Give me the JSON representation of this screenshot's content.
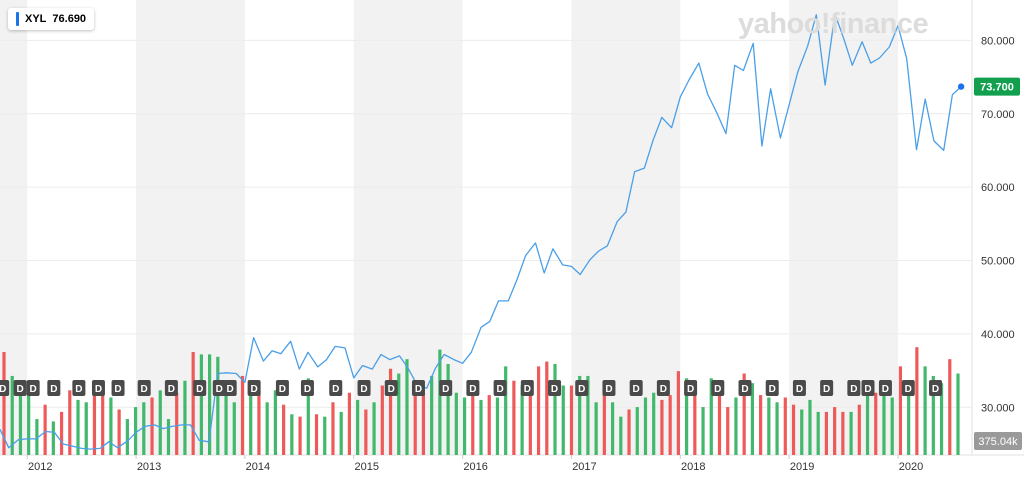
{
  "ticker": {
    "symbol": "XYL",
    "value": "76.690"
  },
  "watermark": "yahoo!finance",
  "last_price_label": "73.700",
  "volume_label": "375.04k",
  "colors": {
    "line": "#4a9fe8",
    "last_badge": "#12a04f",
    "vol_up": "#41b86b",
    "vol_down": "#ee5a5a",
    "band": "#f2f2f2",
    "div_badge": "#4a4a4a"
  },
  "chart_data": {
    "type": "line",
    "title": "",
    "xlabel": "",
    "ylabel": "",
    "ylim": [
      23.5,
      85.5
    ],
    "y_ticks": [
      30,
      40,
      50,
      60,
      70,
      80
    ],
    "y_tick_labels": [
      "30.000",
      "40.000",
      "50.000",
      "60.000",
      "70.000",
      "80.000"
    ],
    "x_ticks": [
      2012,
      2013,
      2014,
      2015,
      2016,
      2017,
      2018,
      2019,
      2020
    ],
    "x_tick_labels": [
      "2012",
      "2013",
      "2014",
      "2015",
      "2016",
      "2017",
      "2018",
      "2019",
      "2020"
    ],
    "xlim": [
      2011.75,
      2020.68
    ],
    "grid": true,
    "series": [
      {
        "points": [
          [
            2011.75,
            27.0
          ],
          [
            2011.83,
            24.5
          ],
          [
            2011.92,
            25.6
          ],
          [
            2012.0,
            25.7
          ],
          [
            2012.08,
            25.7
          ],
          [
            2012.17,
            26.7
          ],
          [
            2012.25,
            26.6
          ],
          [
            2012.33,
            25.0
          ],
          [
            2012.42,
            24.7
          ],
          [
            2012.5,
            24.4
          ],
          [
            2012.58,
            24.3
          ],
          [
            2012.67,
            24.4
          ],
          [
            2012.75,
            25.3
          ],
          [
            2012.83,
            24.5
          ],
          [
            2012.92,
            25.4
          ],
          [
            2013.0,
            26.6
          ],
          [
            2013.08,
            27.4
          ],
          [
            2013.17,
            27.6
          ],
          [
            2013.25,
            27.1
          ],
          [
            2013.33,
            27.4
          ],
          [
            2013.42,
            27.6
          ],
          [
            2013.5,
            27.6
          ],
          [
            2013.58,
            25.5
          ],
          [
            2013.67,
            25.3
          ],
          [
            2013.75,
            34.6
          ],
          [
            2013.83,
            34.7
          ],
          [
            2013.92,
            34.6
          ],
          [
            2014.0,
            33.4
          ],
          [
            2014.08,
            39.5
          ],
          [
            2014.17,
            36.3
          ],
          [
            2014.25,
            37.7
          ],
          [
            2014.33,
            37.3
          ],
          [
            2014.42,
            39.0
          ],
          [
            2014.5,
            35.2
          ],
          [
            2014.58,
            37.5
          ],
          [
            2014.67,
            35.5
          ],
          [
            2014.75,
            36.5
          ],
          [
            2014.83,
            38.3
          ],
          [
            2014.92,
            38.1
          ],
          [
            2015.0,
            34.0
          ],
          [
            2015.08,
            35.7
          ],
          [
            2015.17,
            35.2
          ],
          [
            2015.25,
            37.2
          ],
          [
            2015.33,
            36.5
          ],
          [
            2015.42,
            37.0
          ],
          [
            2015.5,
            35.3
          ],
          [
            2015.58,
            33.1
          ],
          [
            2015.67,
            32.6
          ],
          [
            2015.75,
            35.3
          ],
          [
            2015.83,
            37.2
          ],
          [
            2015.92,
            36.5
          ],
          [
            2016.0,
            36.0
          ],
          [
            2016.08,
            37.5
          ],
          [
            2016.17,
            40.9
          ],
          [
            2016.25,
            41.7
          ],
          [
            2016.33,
            44.5
          ],
          [
            2016.42,
            44.5
          ],
          [
            2016.5,
            47.4
          ],
          [
            2016.58,
            50.7
          ],
          [
            2016.67,
            52.4
          ],
          [
            2016.75,
            48.3
          ],
          [
            2016.83,
            51.6
          ],
          [
            2016.92,
            49.4
          ],
          [
            2017.0,
            49.2
          ],
          [
            2017.08,
            48.1
          ],
          [
            2017.17,
            50.1
          ],
          [
            2017.25,
            51.3
          ],
          [
            2017.33,
            52.0
          ],
          [
            2017.42,
            55.3
          ],
          [
            2017.5,
            56.6
          ],
          [
            2017.58,
            62.1
          ],
          [
            2017.67,
            62.6
          ],
          [
            2017.75,
            66.4
          ],
          [
            2017.83,
            69.5
          ],
          [
            2017.92,
            68.1
          ],
          [
            2018.0,
            72.3
          ],
          [
            2018.08,
            74.6
          ],
          [
            2018.17,
            76.9
          ],
          [
            2018.25,
            72.7
          ],
          [
            2018.33,
            70.3
          ],
          [
            2018.42,
            67.3
          ],
          [
            2018.5,
            76.6
          ],
          [
            2018.58,
            75.9
          ],
          [
            2018.67,
            79.6
          ],
          [
            2018.75,
            65.6
          ],
          [
            2018.83,
            73.4
          ],
          [
            2018.92,
            66.7
          ],
          [
            2019.0,
            71.2
          ],
          [
            2019.08,
            75.7
          ],
          [
            2019.17,
            79.2
          ],
          [
            2019.25,
            83.5
          ],
          [
            2019.33,
            73.9
          ],
          [
            2019.42,
            83.6
          ],
          [
            2019.5,
            80.3
          ],
          [
            2019.58,
            76.6
          ],
          [
            2019.67,
            79.8
          ],
          [
            2019.75,
            76.9
          ],
          [
            2019.83,
            77.6
          ],
          [
            2019.92,
            79.1
          ],
          [
            2020.0,
            82.0
          ],
          [
            2020.08,
            77.5
          ],
          [
            2020.17,
            65.1
          ],
          [
            2020.25,
            72.0
          ],
          [
            2020.33,
            66.3
          ],
          [
            2020.42,
            65.0
          ],
          [
            2020.5,
            72.6
          ],
          [
            2020.58,
            73.7
          ]
        ]
      }
    ],
    "volume": {
      "label_unit": "k",
      "bars": [
        {
          "h": 86,
          "up": false
        },
        {
          "h": 66,
          "up": true
        },
        {
          "h": 50,
          "up": true
        },
        {
          "h": 55,
          "up": true
        },
        {
          "h": 30,
          "up": true
        },
        {
          "h": 42,
          "up": false
        },
        {
          "h": 28,
          "up": true
        },
        {
          "h": 36,
          "up": false
        },
        {
          "h": 54,
          "up": false
        },
        {
          "h": 46,
          "up": true
        },
        {
          "h": 44,
          "up": true
        },
        {
          "h": 60,
          "up": false
        },
        {
          "h": 62,
          "up": false
        },
        {
          "h": 48,
          "up": true
        },
        {
          "h": 38,
          "up": false
        },
        {
          "h": 30,
          "up": true
        },
        {
          "h": 40,
          "up": true
        },
        {
          "h": 44,
          "up": true
        },
        {
          "h": 48,
          "up": false
        },
        {
          "h": 54,
          "up": true
        },
        {
          "h": 30,
          "up": true
        },
        {
          "h": 52,
          "up": false
        },
        {
          "h": 62,
          "up": true
        },
        {
          "h": 86,
          "up": false
        },
        {
          "h": 84,
          "up": true
        },
        {
          "h": 84,
          "up": true
        },
        {
          "h": 82,
          "up": true
        },
        {
          "h": 56,
          "up": true
        },
        {
          "h": 44,
          "up": true
        },
        {
          "h": 66,
          "up": false
        },
        {
          "h": 54,
          "up": true
        },
        {
          "h": 60,
          "up": false
        },
        {
          "h": 44,
          "up": true
        },
        {
          "h": 54,
          "up": true
        },
        {
          "h": 42,
          "up": false
        },
        {
          "h": 34,
          "up": true
        },
        {
          "h": 32,
          "up": false
        },
        {
          "h": 64,
          "up": true
        },
        {
          "h": 34,
          "up": false
        },
        {
          "h": 32,
          "up": true
        },
        {
          "h": 44,
          "up": false
        },
        {
          "h": 36,
          "up": true
        },
        {
          "h": 52,
          "up": false
        },
        {
          "h": 46,
          "up": true
        },
        {
          "h": 38,
          "up": false
        },
        {
          "h": 44,
          "up": true
        },
        {
          "h": 58,
          "up": false
        },
        {
          "h": 72,
          "up": false
        },
        {
          "h": 68,
          "up": true
        },
        {
          "h": 80,
          "up": true
        },
        {
          "h": 54,
          "up": false
        },
        {
          "h": 52,
          "up": false
        },
        {
          "h": 66,
          "up": true
        },
        {
          "h": 88,
          "up": true
        },
        {
          "h": 76,
          "up": true
        },
        {
          "h": 52,
          "up": true
        },
        {
          "h": 48,
          "up": true
        },
        {
          "h": 62,
          "up": false
        },
        {
          "h": 46,
          "up": true
        },
        {
          "h": 50,
          "up": false
        },
        {
          "h": 48,
          "up": true
        },
        {
          "h": 74,
          "up": true
        },
        {
          "h": 62,
          "up": false
        },
        {
          "h": 58,
          "up": true
        },
        {
          "h": 56,
          "up": false
        },
        {
          "h": 74,
          "up": false
        },
        {
          "h": 78,
          "up": false
        },
        {
          "h": 76,
          "up": true
        },
        {
          "h": 58,
          "up": true
        },
        {
          "h": 58,
          "up": false
        },
        {
          "h": 66,
          "up": true
        },
        {
          "h": 66,
          "up": true
        },
        {
          "h": 44,
          "up": true
        },
        {
          "h": 52,
          "up": false
        },
        {
          "h": 44,
          "up": true
        },
        {
          "h": 32,
          "up": true
        },
        {
          "h": 38,
          "up": false
        },
        {
          "h": 40,
          "up": true
        },
        {
          "h": 48,
          "up": true
        },
        {
          "h": 52,
          "up": true
        },
        {
          "h": 46,
          "up": false
        },
        {
          "h": 50,
          "up": false
        },
        {
          "h": 70,
          "up": false
        },
        {
          "h": 64,
          "up": true
        },
        {
          "h": 50,
          "up": false
        },
        {
          "h": 40,
          "up": true
        },
        {
          "h": 64,
          "up": true
        },
        {
          "h": 52,
          "up": false
        },
        {
          "h": 40,
          "up": false
        },
        {
          "h": 48,
          "up": true
        },
        {
          "h": 68,
          "up": false
        },
        {
          "h": 60,
          "up": true
        },
        {
          "h": 50,
          "up": false
        },
        {
          "h": 48,
          "up": true
        },
        {
          "h": 44,
          "up": true
        },
        {
          "h": 48,
          "up": false
        },
        {
          "h": 42,
          "up": false
        },
        {
          "h": 38,
          "up": true
        },
        {
          "h": 46,
          "up": true
        },
        {
          "h": 36,
          "up": true
        },
        {
          "h": 36,
          "up": false
        },
        {
          "h": 40,
          "up": false
        },
        {
          "h": 36,
          "up": false
        },
        {
          "h": 36,
          "up": true
        },
        {
          "h": 42,
          "up": false
        },
        {
          "h": 54,
          "up": true
        },
        {
          "h": 52,
          "up": false
        },
        {
          "h": 56,
          "up": true
        },
        {
          "h": 48,
          "up": true
        },
        {
          "h": 74,
          "up": false
        },
        {
          "h": 56,
          "up": true
        },
        {
          "h": 90,
          "up": false
        },
        {
          "h": 74,
          "up": true
        },
        {
          "h": 66,
          "up": true
        },
        {
          "h": 60,
          "up": true
        },
        {
          "h": 80,
          "up": false
        },
        {
          "h": 68,
          "up": true
        }
      ]
    },
    "dividend_markers": {
      "label": "D",
      "x": [
        2011.77,
        2011.93,
        2012.05,
        2012.24,
        2012.47,
        2012.65,
        2012.83,
        2013.07,
        2013.32,
        2013.58,
        2013.76,
        2013.86,
        2014.08,
        2014.34,
        2014.57,
        2014.83,
        2015.09,
        2015.34,
        2015.59,
        2015.84,
        2016.09,
        2016.34,
        2016.59,
        2016.84,
        2017.09,
        2017.34,
        2017.59,
        2017.84,
        2018.09,
        2018.34,
        2018.59,
        2018.84,
        2019.09,
        2019.34,
        2019.59,
        2019.72,
        2019.88,
        2020.09,
        2020.34
      ]
    }
  }
}
